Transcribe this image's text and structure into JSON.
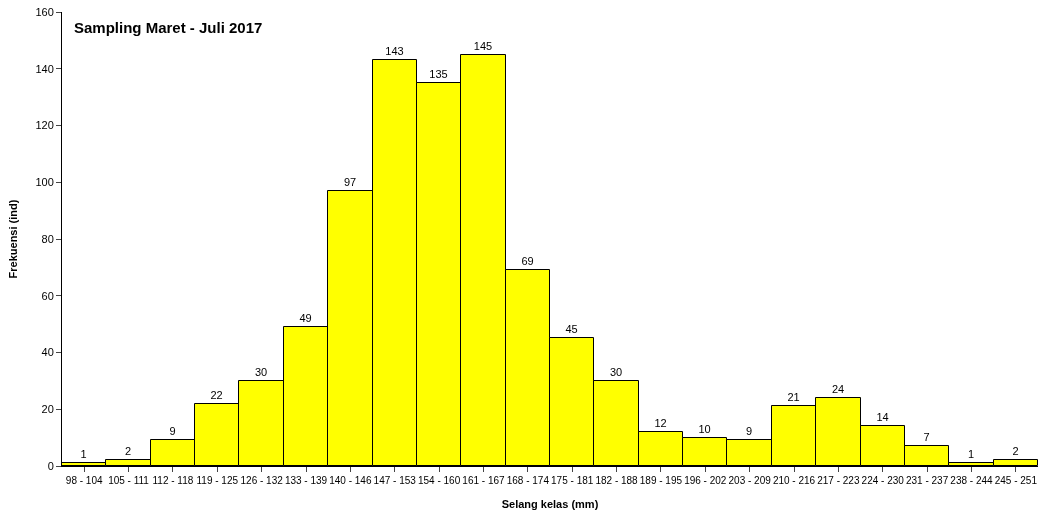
{
  "chart_data": {
    "type": "bar",
    "title": "Sampling Maret - Juli 2017",
    "xlabel": "Selang kelas (mm)",
    "ylabel": "Frekuensi (ind)",
    "categories": [
      "98 - 104",
      "105 - 111",
      "112 - 118",
      "119 - 125",
      "126 - 132",
      "133 - 139",
      "140 - 146",
      "147 - 153",
      "154 - 160",
      "161 - 167",
      "168 - 174",
      "175 - 181",
      "182 - 188",
      "189 - 195",
      "196 - 202",
      "203 - 209",
      "210 - 216",
      "217 - 223",
      "224 - 230",
      "231 - 237",
      "238 - 244",
      "245 - 251"
    ],
    "values": [
      1,
      2,
      9,
      22,
      30,
      49,
      97,
      143,
      135,
      145,
      69,
      45,
      30,
      12,
      10,
      9,
      21,
      24,
      14,
      7,
      1,
      2
    ],
    "color": "#ffff00",
    "ylim": [
      0,
      160
    ],
    "yticks": [
      0,
      20,
      40,
      60,
      80,
      100,
      120,
      140,
      160
    ],
    "data_labels": true
  }
}
